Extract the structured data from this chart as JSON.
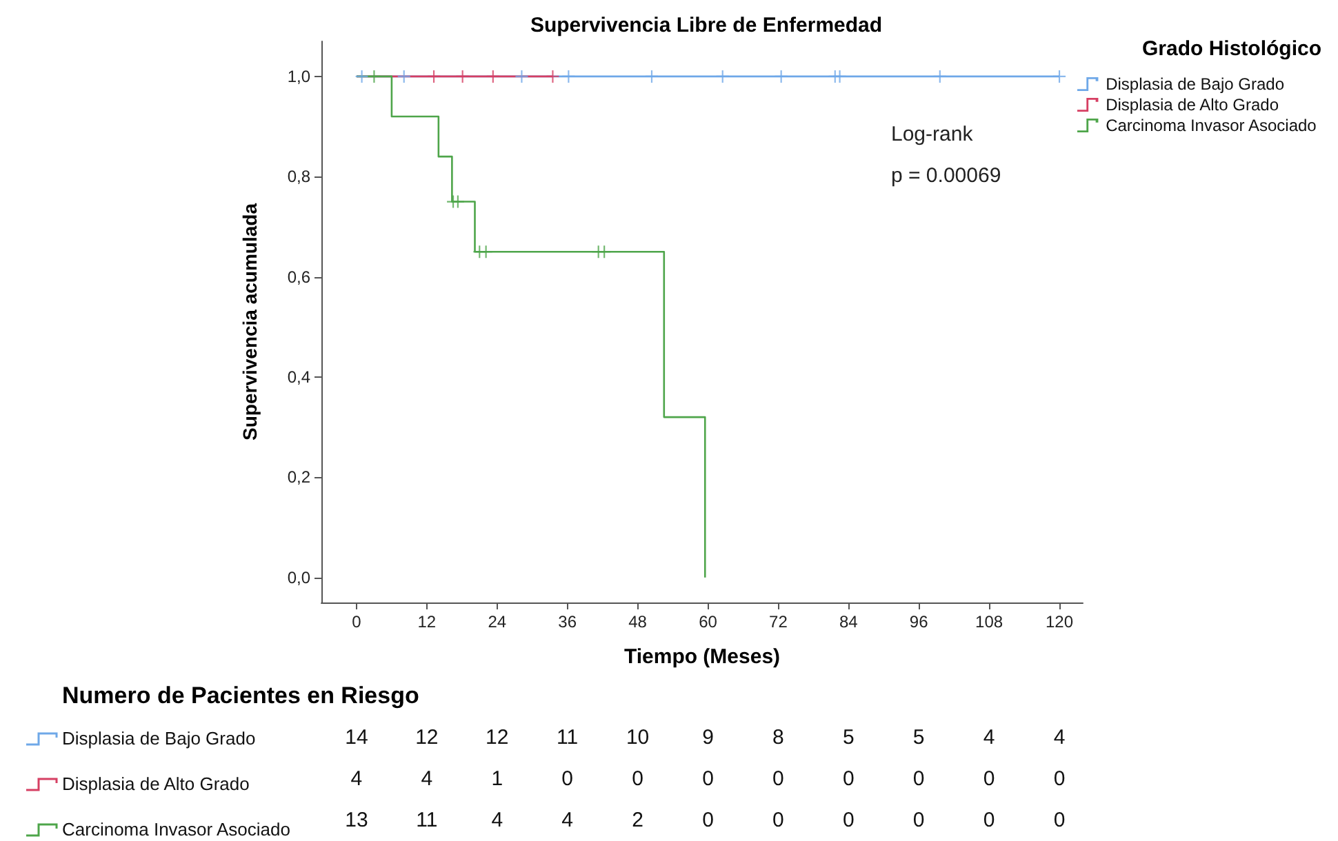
{
  "chart_data": [
    {
      "type": "step",
      "title": "Supervivencia Libre de Enfermedad",
      "xlabel": "Tiempo (Meses)",
      "ylabel": "Supervivencia acumulada",
      "legend_title": "Grado Histológico",
      "legend": "top right",
      "grid": false,
      "line_style": "solid",
      "annotations": [
        "Log-rank",
        "p = 0.00069"
      ],
      "xlim": [
        -6,
        124
      ],
      "xticks": [
        0,
        12,
        24,
        36,
        48,
        60,
        72,
        84,
        96,
        108,
        120
      ],
      "ylim": [
        -0.05,
        1.07
      ],
      "yticks": [
        {
          "value": 0,
          "label": "0,0"
        },
        {
          "value": 0.2,
          "label": "0,2"
        },
        {
          "value": 0.4,
          "label": "0,4"
        },
        {
          "value": 0.6,
          "label": "0,6"
        },
        {
          "value": 0.8,
          "label": "0,8"
        },
        {
          "value": 1,
          "label": "1,0"
        }
      ],
      "series": [
        {
          "name": "Displasia de Bajo Grado",
          "color": "#6fa8e8",
          "x": [
            0,
            120
          ],
          "values": [
            1,
            1
          ]
        },
        {
          "name": "Displasia de Alto Grado",
          "color": "#d63f63",
          "x": [
            0,
            33.5
          ],
          "values": [
            1,
            1
          ]
        },
        {
          "name": "Carcinoma Invasor Asociado",
          "color": "#4ea54a",
          "x": [
            0,
            6,
            14,
            16.3,
            20.2,
            52.5,
            59.5
          ],
          "values": [
            1,
            0.92,
            0.84,
            0.75,
            0.65,
            0.32,
            0
          ]
        },
        {
          "type": "scatter",
          "marker": "cross",
          "color": "#6fa8e8",
          "x": [
            0.9,
            8.1,
            28.2,
            36.2,
            50.4,
            62.5,
            72.5,
            81.7,
            82.5,
            99.6,
            120
          ],
          "values": [
            1,
            1,
            1,
            1,
            1,
            1,
            1,
            1,
            1,
            1,
            1
          ]
        },
        {
          "type": "scatter",
          "marker": "cross",
          "color": "#d63f63",
          "x": [
            13.2,
            18.1,
            23.3,
            33.5
          ],
          "values": [
            1,
            1,
            1,
            1
          ]
        },
        {
          "type": "scatter",
          "marker": "cross",
          "color": "#4ea54a",
          "x": [
            3,
            16.5,
            17.3,
            21,
            22.1,
            41.3,
            42.3
          ],
          "values": [
            1,
            0.75,
            0.75,
            0.65,
            0.65,
            0.65,
            0.65
          ]
        }
      ]
    },
    {
      "title": "Numero de Pacientes en Riesgo",
      "type": "heatmap",
      "data_labels": true,
      "categories": [
        null,
        null,
        null,
        null,
        null,
        null,
        null,
        null,
        null,
        null,
        null
      ],
      "y_categories": [
        "Displasia de Bajo Grado",
        "Displasia de Alto Grado",
        "Carcinoma Invasor Asociado"
      ],
      "cells": [
        [
          14,
          12,
          12,
          11,
          10,
          9,
          8,
          5,
          5,
          4,
          4
        ],
        [
          4,
          4,
          1,
          0,
          0,
          0,
          0,
          0,
          0,
          0,
          0
        ],
        [
          13,
          11,
          4,
          4,
          2,
          0,
          0,
          0,
          0,
          0,
          0
        ]
      ]
    }
  ]
}
